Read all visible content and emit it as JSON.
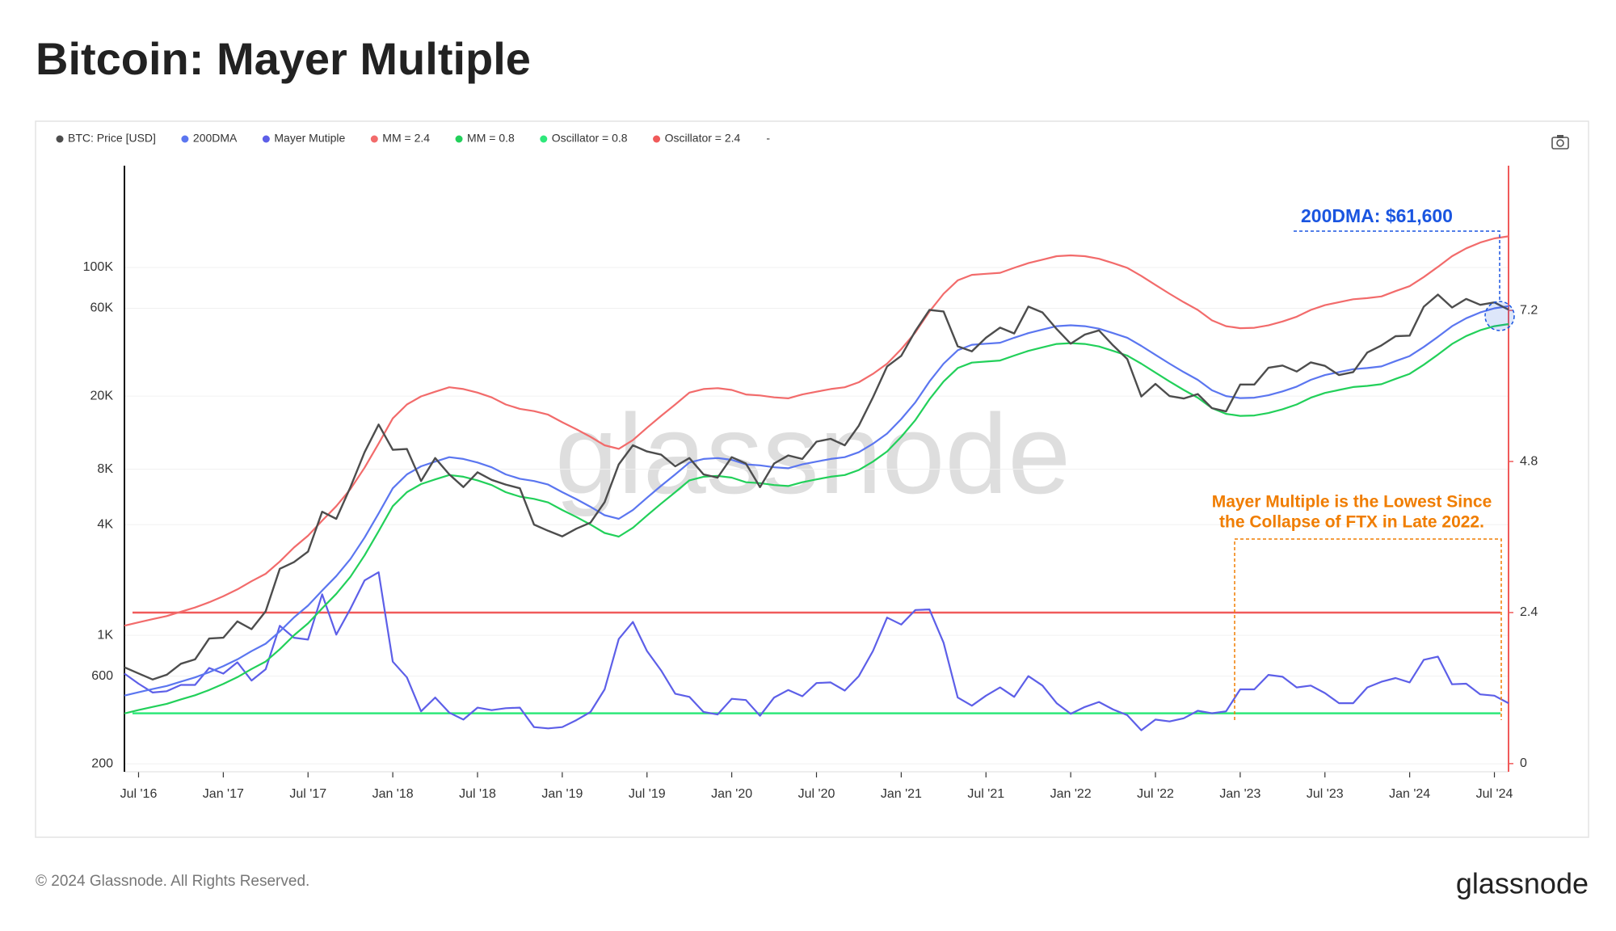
{
  "chart_data": {
    "type": "line",
    "title": "Bitcoin: Mayer Multiple",
    "x": [
      "2016-06",
      "2016-07",
      "2016-08",
      "2016-09",
      "2016-10",
      "2016-11",
      "2016-12",
      "2017-01",
      "2017-02",
      "2017-03",
      "2017-04",
      "2017-05",
      "2017-06",
      "2017-07",
      "2017-08",
      "2017-09",
      "2017-10",
      "2017-11",
      "2017-12",
      "2018-01",
      "2018-02",
      "2018-03",
      "2018-04",
      "2018-05",
      "2018-06",
      "2018-07",
      "2018-08",
      "2018-09",
      "2018-10",
      "2018-11",
      "2018-12",
      "2019-01",
      "2019-02",
      "2019-03",
      "2019-04",
      "2019-05",
      "2019-06",
      "2019-07",
      "2019-08",
      "2019-09",
      "2019-10",
      "2019-11",
      "2019-12",
      "2020-01",
      "2020-02",
      "2020-03",
      "2020-04",
      "2020-05",
      "2020-06",
      "2020-07",
      "2020-08",
      "2020-09",
      "2020-10",
      "2020-11",
      "2020-12",
      "2021-01",
      "2021-02",
      "2021-03",
      "2021-04",
      "2021-05",
      "2021-06",
      "2021-07",
      "2021-08",
      "2021-09",
      "2021-10",
      "2021-11",
      "2021-12",
      "2022-01",
      "2022-02",
      "2022-03",
      "2022-04",
      "2022-05",
      "2022-06",
      "2022-07",
      "2022-08",
      "2022-09",
      "2022-10",
      "2022-11",
      "2022-12",
      "2023-01",
      "2023-02",
      "2023-03",
      "2023-04",
      "2023-05",
      "2023-06",
      "2023-07",
      "2023-08",
      "2023-09",
      "2023-10",
      "2023-11",
      "2023-12",
      "2024-01",
      "2024-02",
      "2024-03",
      "2024-04",
      "2024-05",
      "2024-06",
      "2024-07",
      "2024-08"
    ],
    "series": [
      {
        "name": "BTC: Price [USD]",
        "color": "#4d4d4d",
        "values": [
          670,
          620,
          575,
          610,
          700,
          740,
          960,
          970,
          1190,
          1080,
          1350,
          2300,
          2500,
          2850,
          4700,
          4300,
          6400,
          9900,
          14000,
          10200,
          10300,
          6900,
          9200,
          7500,
          6400,
          7700,
          7000,
          6600,
          6300,
          4000,
          3700,
          3450,
          3800,
          4100,
          5300,
          8500,
          10800,
          10000,
          9600,
          8300,
          9200,
          7500,
          7200,
          9300,
          8600,
          6400,
          8600,
          9500,
          9100,
          11300,
          11700,
          10800,
          13800,
          19700,
          29000,
          33100,
          45200,
          58800,
          57700,
          37300,
          35000,
          41500,
          47100,
          43800,
          61300,
          57000,
          46300,
          38500,
          43200,
          45500,
          37700,
          31800,
          19900,
          23300,
          20000,
          19400,
          20500,
          17200,
          16500,
          23100,
          23100,
          28500,
          29300,
          27200,
          30500,
          29200,
          26000,
          27000,
          34500,
          37700,
          42300,
          42600,
          61200,
          71300,
          60600,
          67500,
          62700,
          64600,
          59000
        ]
      },
      {
        "name": "200DMA",
        "color": "#5b76f0",
        "values": [
          470,
          490,
          510,
          530,
          560,
          590,
          630,
          680,
          740,
          820,
          900,
          1050,
          1250,
          1450,
          1750,
          2100,
          2600,
          3400,
          4600,
          6300,
          7500,
          8300,
          8800,
          9300,
          9100,
          8700,
          8200,
          7500,
          7100,
          6900,
          6600,
          6000,
          5500,
          5000,
          4500,
          4300,
          4800,
          5600,
          6500,
          7500,
          8700,
          9100,
          9200,
          9000,
          8500,
          8400,
          8200,
          8100,
          8500,
          8800,
          9100,
          9300,
          9900,
          11000,
          12500,
          15000,
          18500,
          24000,
          30000,
          35500,
          38000,
          38500,
          39000,
          41500,
          44000,
          46000,
          48000,
          48500,
          48000,
          46500,
          44000,
          41500,
          37500,
          33500,
          30000,
          27000,
          24500,
          21500,
          20000,
          19500,
          19600,
          20200,
          21200,
          22500,
          24500,
          26000,
          27000,
          28000,
          28400,
          29000,
          31000,
          33000,
          37000,
          42000,
          48000,
          53000,
          57000,
          60000,
          61600
        ]
      },
      {
        "name": "Mayer Mutiple",
        "color": "#5d5fe8",
        "axis": "y2",
        "values": [
          1.43,
          1.27,
          1.13,
          1.15,
          1.25,
          1.25,
          1.52,
          1.43,
          1.61,
          1.32,
          1.5,
          2.19,
          2.0,
          1.97,
          2.69,
          2.05,
          2.46,
          2.91,
          3.04,
          1.62,
          1.37,
          0.83,
          1.05,
          0.81,
          0.7,
          0.89,
          0.85,
          0.88,
          0.89,
          0.58,
          0.56,
          0.58,
          0.69,
          0.82,
          1.18,
          1.98,
          2.25,
          1.79,
          1.48,
          1.11,
          1.06,
          0.82,
          0.78,
          1.03,
          1.01,
          0.76,
          1.05,
          1.17,
          1.07,
          1.28,
          1.29,
          1.16,
          1.39,
          1.79,
          2.32,
          2.21,
          2.44,
          2.45,
          1.92,
          1.05,
          0.92,
          1.08,
          1.21,
          1.06,
          1.39,
          1.24,
          0.96,
          0.79,
          0.9,
          0.98,
          0.86,
          0.77,
          0.53,
          0.7,
          0.67,
          0.72,
          0.84,
          0.8,
          0.83,
          1.18,
          1.18,
          1.41,
          1.38,
          1.21,
          1.24,
          1.12,
          0.96,
          0.96,
          1.21,
          1.3,
          1.36,
          1.29,
          1.65,
          1.7,
          1.26,
          1.27,
          1.1,
          1.08,
          0.96
        ]
      },
      {
        "name": "MM = 2.4",
        "color": "#f26b6b",
        "values": [
          1128,
          1176,
          1224,
          1272,
          1344,
          1416,
          1512,
          1632,
          1776,
          1968,
          2160,
          2520,
          3000,
          3480,
          4200,
          5040,
          6240,
          8160,
          11040,
          15120,
          18000,
          19920,
          21120,
          22320,
          21840,
          20880,
          19680,
          18000,
          17040,
          16560,
          15840,
          14400,
          13200,
          12000,
          10800,
          10320,
          11520,
          13440,
          15600,
          18000,
          20880,
          21840,
          22080,
          21600,
          20400,
          20160,
          19680,
          19440,
          20400,
          21120,
          21840,
          22320,
          23760,
          26400,
          30000,
          36000,
          44400,
          57600,
          72000,
          85200,
          91200,
          92400,
          93600,
          99600,
          105600,
          110400,
          115200,
          116400,
          115200,
          111600,
          105600,
          99600,
          90000,
          80400,
          72000,
          64800,
          58800,
          51600,
          48000,
          46800,
          47040,
          48480,
          50880,
          54000,
          58800,
          62400,
          64800,
          67200,
          68160,
          69600,
          74400,
          79200,
          88800,
          100800,
          115200,
          127200,
          136800,
          144000,
          147840
        ]
      },
      {
        "name": "MM = 0.8",
        "color": "#22d05a",
        "values": [
          376,
          392,
          408,
          424,
          448,
          472,
          504,
          544,
          592,
          656,
          720,
          840,
          1000,
          1160,
          1400,
          1680,
          2080,
          2720,
          3680,
          5040,
          6000,
          6640,
          7040,
          7440,
          7280,
          6960,
          6560,
          6000,
          5680,
          5520,
          5280,
          4800,
          4400,
          4000,
          3600,
          3440,
          3840,
          4480,
          5200,
          6000,
          6960,
          7280,
          7360,
          7200,
          6800,
          6720,
          6560,
          6480,
          6800,
          7040,
          7280,
          7440,
          7920,
          8800,
          10000,
          12000,
          14800,
          19200,
          24000,
          28400,
          30400,
          30800,
          31200,
          33200,
          35200,
          36800,
          38400,
          38800,
          38400,
          37200,
          35200,
          33200,
          30000,
          26800,
          24000,
          21600,
          19600,
          17200,
          16000,
          15600,
          15680,
          16160,
          16960,
          18000,
          19600,
          20800,
          21600,
          22400,
          22720,
          23200,
          24800,
          26400,
          29600,
          33600,
          38400,
          42400,
          45600,
          48000,
          49280
        ]
      }
    ],
    "hlines": [
      {
        "name": "Oscillator = 0.8",
        "color": "#2ee87a",
        "value": 0.8,
        "axis": "y2"
      },
      {
        "name": "Oscillator = 2.4",
        "color": "#f05a5a",
        "value": 2.4,
        "axis": "y2"
      }
    ],
    "legend_trailer": "-",
    "xlim": [
      "2016-06",
      "2024-08"
    ],
    "xticks": [
      {
        "value": "2016-07",
        "label": "Jul '16"
      },
      {
        "value": "2017-01",
        "label": "Jan '17"
      },
      {
        "value": "2017-07",
        "label": "Jul '17"
      },
      {
        "value": "2018-01",
        "label": "Jan '18"
      },
      {
        "value": "2018-07",
        "label": "Jul '18"
      },
      {
        "value": "2019-01",
        "label": "Jan '19"
      },
      {
        "value": "2019-07",
        "label": "Jul '19"
      },
      {
        "value": "2020-01",
        "label": "Jan '20"
      },
      {
        "value": "2020-07",
        "label": "Jul '20"
      },
      {
        "value": "2021-01",
        "label": "Jan '21"
      },
      {
        "value": "2021-07",
        "label": "Jul '21"
      },
      {
        "value": "2022-01",
        "label": "Jan '22"
      },
      {
        "value": "2022-07",
        "label": "Jul '22"
      },
      {
        "value": "2023-01",
        "label": "Jan '23"
      },
      {
        "value": "2023-07",
        "label": "Jul '23"
      },
      {
        "value": "2024-01",
        "label": "Jan '24"
      },
      {
        "value": "2024-07",
        "label": "Jul '24"
      }
    ],
    "ylim": [
      181,
      358000
    ],
    "ylog": true,
    "yticks": [
      200,
      600,
      {
        "value": 1000,
        "label": "1K"
      },
      {
        "value": 4000,
        "label": "4K"
      },
      {
        "value": 8000,
        "label": "8K"
      },
      {
        "value": 20000,
        "label": "20K"
      },
      {
        "value": 60000,
        "label": "60K"
      },
      {
        "value": 100000,
        "label": "100K"
      }
    ],
    "y2lim": [
      -0.13,
      9.5
    ],
    "y2ticks": [
      0,
      2.4,
      4.8,
      7.2
    ],
    "y2_axis_color": "#f05a5a",
    "grid": true,
    "annotations": [
      "200DMA: $61,600",
      "Mayer Multiple is the Lowest Since",
      "the Collapse of FTX in Late 2022."
    ],
    "watermark": "glassnode",
    "footer": "© 2024 Glassnode. All Rights Reserved.",
    "logo": "glassnode"
  }
}
